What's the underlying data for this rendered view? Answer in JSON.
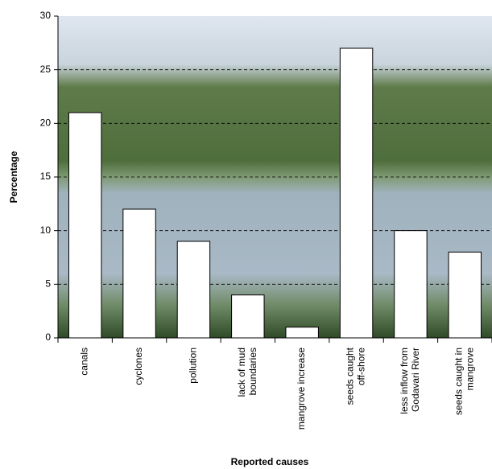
{
  "chart_data": {
    "type": "bar",
    "x_label": "Reported causes",
    "y_label": "Percentage",
    "categories": [
      "canals",
      "cyclones",
      "pollution",
      "lack of mud boundaries",
      "mangrove increase",
      "seeds caught off-shore",
      "less inflow from Godavari River",
      "seeds caught in mangrove"
    ],
    "values": [
      21,
      12,
      9,
      4,
      1,
      27,
      10,
      8
    ],
    "color": "#ffffff",
    "ylim": [
      0,
      30
    ],
    "yticks": [
      0,
      5,
      10,
      15,
      20,
      25,
      30
    ],
    "grid": true
  }
}
